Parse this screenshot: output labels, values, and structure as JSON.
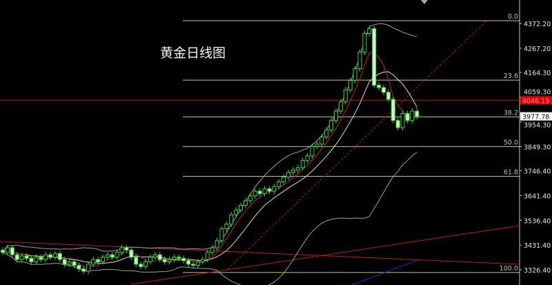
{
  "chart_data": {
    "type": "candlestick",
    "title": "黄金日线图",
    "y_ticks": [
      4372.2,
      4267.2,
      4164.3,
      4059.3,
      3954.3,
      3849.3,
      3746.4,
      3641.4,
      3536.4,
      3431.4,
      3326.4
    ],
    "ylim": [
      3300,
      4390
    ],
    "grid": false,
    "current_price": "3977.78",
    "alert_line_price": "4046.19",
    "fibonacci": {
      "high": 4384,
      "low": 3315,
      "levels": [
        {
          "label": "0.0",
          "ratio": 0.0
        },
        {
          "label": "23.6",
          "ratio": 0.236
        },
        {
          "label": "38.2",
          "ratio": 0.382
        },
        {
          "label": "50.0",
          "ratio": 0.5
        },
        {
          "label": "61.8",
          "ratio": 0.618
        },
        {
          "label": "100.0",
          "ratio": 1.0
        }
      ]
    },
    "close": [
      3400,
      3420,
      3390,
      3370,
      3385,
      3375,
      3360,
      3380,
      3370,
      3390,
      3380,
      3395,
      3370,
      3350,
      3360,
      3345,
      3330,
      3320,
      3350,
      3370,
      3360,
      3380,
      3390,
      3380,
      3400,
      3420,
      3410,
      3380,
      3350,
      3340,
      3360,
      3380,
      3390,
      3370,
      3360,
      3370,
      3380,
      3375,
      3365,
      3350,
      3345,
      3360,
      3370,
      3400,
      3420,
      3450,
      3500,
      3520,
      3560,
      3580,
      3600,
      3620,
      3640,
      3660,
      3650,
      3670,
      3660,
      3680,
      3700,
      3720,
      3740,
      3750,
      3760,
      3790,
      3810,
      3850,
      3860,
      3890,
      3920,
      3960,
      4000,
      4040,
      4090,
      4130,
      4180,
      4250,
      4330,
      4350,
      4110,
      4100,
      4080,
      4050,
      3960,
      3930,
      3990,
      3960,
      4000,
      3978
    ],
    "colors": {
      "bull": "#33dd33",
      "bear": "#ccffcc",
      "fib": "#c8c880",
      "alert": "#d01010",
      "ma_fast": "#d02020",
      "ma_slow": "#e8e8a0",
      "bands": "#a0a0a0"
    }
  }
}
